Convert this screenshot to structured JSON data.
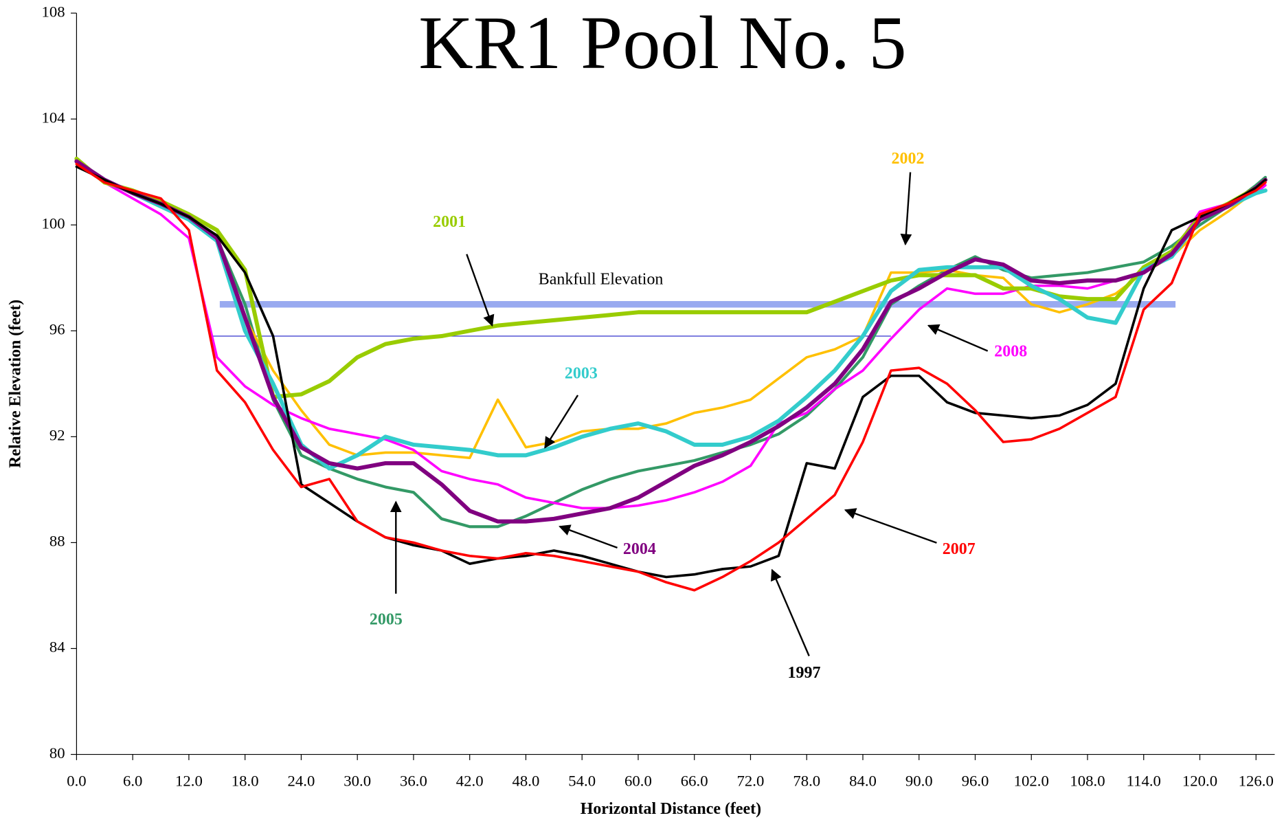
{
  "chart_data": {
    "type": "line",
    "title": "KR1 Pool No. 5",
    "x_label": "Horizontal Distance (feet)",
    "y_label": "Relative Elevation (feet)",
    "xlim": [
      0,
      128
    ],
    "ylim": [
      80,
      108
    ],
    "xticks": [
      {
        "value": 0,
        "label": "0.0"
      },
      {
        "value": 6,
        "label": "6.0"
      },
      {
        "value": 12,
        "label": "12.0"
      },
      {
        "value": 18,
        "label": "18.0"
      },
      {
        "value": 24,
        "label": "24.0"
      },
      {
        "value": 30,
        "label": "30.0"
      },
      {
        "value": 36,
        "label": "36.0"
      },
      {
        "value": 42,
        "label": "42.0"
      },
      {
        "value": 48,
        "label": "48.0"
      },
      {
        "value": 54,
        "label": "54.0"
      },
      {
        "value": 60,
        "label": "60.0"
      },
      {
        "value": 66,
        "label": "66.0"
      },
      {
        "value": 72,
        "label": "72.0"
      },
      {
        "value": 78,
        "label": "78.0"
      },
      {
        "value": 84,
        "label": "84.0"
      },
      {
        "value": 90,
        "label": "90.0"
      },
      {
        "value": 96,
        "label": "96.0"
      },
      {
        "value": 102,
        "label": "102.0"
      },
      {
        "value": 108,
        "label": "108.0"
      },
      {
        "value": 114,
        "label": "114.0"
      },
      {
        "value": 120,
        "label": "120.0"
      },
      {
        "value": 126,
        "label": "126.0"
      }
    ],
    "yticks": [
      80,
      84,
      88,
      92,
      96,
      100,
      104,
      108
    ],
    "grid": false,
    "x": [
      0,
      3,
      6,
      9,
      12,
      15,
      18,
      21,
      24,
      27,
      30,
      33,
      36,
      39,
      42,
      45,
      48,
      51,
      54,
      57,
      60,
      63,
      66,
      69,
      72,
      75,
      78,
      81,
      84,
      87,
      90,
      93,
      96,
      99,
      102,
      105,
      108,
      111,
      114,
      117,
      120,
      123,
      126,
      127
    ],
    "series": [
      {
        "name": "1997",
        "color": "#000000",
        "values": [
          102.2,
          101.7,
          101.2,
          100.8,
          100.3,
          99.6,
          98.2,
          95.8,
          90.2,
          89.5,
          88.8,
          88.2,
          87.9,
          87.7,
          87.2,
          87.4,
          87.5,
          87.7,
          87.5,
          87.2,
          86.9,
          86.7,
          86.8,
          87.0,
          87.1,
          87.5,
          91.0,
          90.8,
          93.5,
          94.3,
          94.3,
          93.3,
          92.9,
          92.8,
          92.7,
          92.8,
          93.2,
          94.0,
          97.6,
          99.8,
          100.3,
          100.8,
          101.4,
          101.7
        ]
      },
      {
        "name": "2001",
        "color": "#99cc00",
        "values": [
          102.5,
          101.6,
          101.3,
          100.9,
          100.4,
          99.8,
          98.3,
          93.5,
          93.6,
          94.1,
          95.0,
          95.5,
          95.7,
          95.8,
          96.0,
          96.2,
          96.3,
          96.4,
          96.5,
          96.6,
          96.7,
          96.7,
          96.7,
          96.7,
          96.7,
          96.7,
          96.7,
          97.1,
          97.5,
          97.9,
          98.1,
          98.1,
          98.1,
          97.6,
          97.6,
          97.3,
          97.2,
          97.2,
          98.4,
          99.0,
          100.3,
          100.8,
          101.4,
          101.7
        ]
      },
      {
        "name": "2002",
        "color": "#ffc000",
        "values": [
          102.3,
          101.7,
          101.2,
          100.7,
          100.2,
          99.6,
          96.5,
          94.5,
          93.0,
          91.7,
          91.3,
          91.4,
          91.4,
          91.3,
          91.2,
          93.4,
          91.6,
          91.8,
          92.2,
          92.3,
          92.3,
          92.5,
          92.9,
          93.1,
          93.4,
          94.2,
          95.0,
          95.3,
          95.8,
          98.2,
          98.2,
          98.3,
          98.1,
          98.0,
          97.0,
          96.7,
          97.0,
          97.4,
          98.2,
          98.8,
          99.8,
          100.5,
          101.3,
          101.6
        ]
      },
      {
        "name": "2003",
        "color": "#33cccc",
        "values": [
          102.4,
          101.7,
          101.2,
          100.7,
          100.2,
          99.4,
          96.0,
          94.0,
          91.7,
          90.8,
          91.3,
          92.0,
          91.7,
          91.6,
          91.5,
          91.3,
          91.3,
          91.6,
          92.0,
          92.3,
          92.5,
          92.2,
          91.7,
          91.7,
          92.0,
          92.6,
          93.5,
          94.5,
          95.8,
          97.5,
          98.3,
          98.4,
          98.4,
          98.4,
          97.7,
          97.2,
          96.5,
          96.3,
          98.3,
          98.8,
          100.2,
          100.7,
          101.2,
          101.3
        ]
      },
      {
        "name": "2004",
        "color": "#800080",
        "values": [
          102.4,
          101.7,
          101.2,
          100.8,
          100.3,
          99.5,
          96.5,
          93.5,
          91.6,
          91.0,
          90.8,
          91.0,
          91.0,
          90.2,
          89.2,
          88.8,
          88.8,
          88.9,
          89.1,
          89.3,
          89.7,
          90.3,
          90.9,
          91.3,
          91.8,
          92.4,
          93.1,
          94.0,
          95.3,
          97.1,
          97.6,
          98.2,
          98.7,
          98.5,
          97.9,
          97.8,
          97.9,
          97.9,
          98.2,
          98.9,
          100.2,
          100.7,
          101.4,
          101.7
        ]
      },
      {
        "name": "2005",
        "color": "#339966",
        "values": [
          102.4,
          101.7,
          101.2,
          100.8,
          100.3,
          99.5,
          97.0,
          93.4,
          91.3,
          90.8,
          90.4,
          90.1,
          89.9,
          88.9,
          88.6,
          88.6,
          89.0,
          89.5,
          90.0,
          90.4,
          90.7,
          90.9,
          91.1,
          91.4,
          91.7,
          92.1,
          92.8,
          93.8,
          95.0,
          97.0,
          97.7,
          98.3,
          98.8,
          98.3,
          98.0,
          98.1,
          98.2,
          98.4,
          98.6,
          99.2,
          100.0,
          100.7,
          101.5,
          101.8
        ]
      },
      {
        "name": "2007",
        "color": "#ff0000",
        "values": [
          102.3,
          101.6,
          101.3,
          101.0,
          99.8,
          94.5,
          93.3,
          91.5,
          90.1,
          90.4,
          88.8,
          88.2,
          88.0,
          87.7,
          87.5,
          87.4,
          87.6,
          87.5,
          87.3,
          87.1,
          86.9,
          86.5,
          86.2,
          86.7,
          87.3,
          88.0,
          88.9,
          89.8,
          91.8,
          94.5,
          94.6,
          94.0,
          93.0,
          91.8,
          91.9,
          92.3,
          92.9,
          93.5,
          96.8,
          97.8,
          100.4,
          100.8,
          101.3,
          101.6
        ]
      },
      {
        "name": "2008",
        "color": "#ff00ff",
        "values": [
          102.4,
          101.6,
          101.0,
          100.4,
          99.5,
          95.0,
          93.9,
          93.2,
          92.7,
          92.3,
          92.1,
          91.9,
          91.5,
          90.7,
          90.4,
          90.2,
          89.7,
          89.5,
          89.3,
          89.3,
          89.4,
          89.6,
          89.9,
          90.3,
          90.9,
          92.5,
          92.9,
          93.8,
          94.5,
          95.7,
          96.8,
          97.6,
          97.4,
          97.4,
          97.7,
          97.7,
          97.6,
          97.9,
          98.2,
          98.9,
          100.5,
          100.8,
          101.2,
          101.5
        ]
      }
    ],
    "reference_lines": [
      {
        "name": "Bankfull Elevation",
        "value": 97.0,
        "x": [
          15.3,
          117.4
        ],
        "color": "#99aaf0"
      },
      {
        "value": 95.8,
        "x": [
          14.5,
          87.0
        ],
        "color": "#3333cc"
      }
    ]
  }
}
